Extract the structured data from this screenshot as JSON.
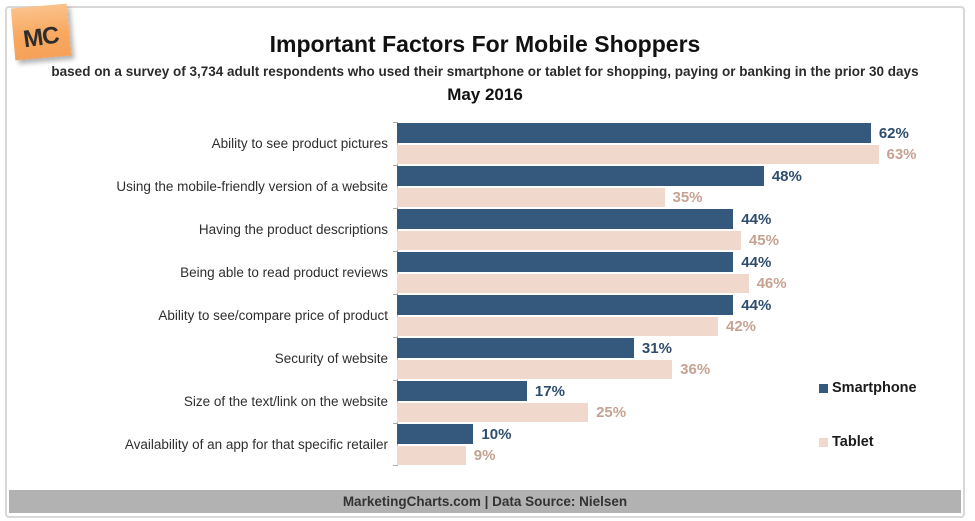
{
  "logo": {
    "text": "MC"
  },
  "header": {
    "title": "Important Factors For Mobile Shoppers",
    "subtitle": "based on a survey of 3,734 adult respondents who used their smartphone or tablet for shopping, paying or banking in the prior 30 days",
    "period": "May 2016"
  },
  "chart_data": {
    "type": "bar",
    "orientation": "horizontal",
    "title": "Important Factors For Mobile Shoppers",
    "subtitle": "May 2016",
    "categories": [
      "Ability to see product pictures",
      "Using the mobile-friendly version of a website",
      "Having the product descriptions",
      "Being able to read product reviews",
      "Ability to see/compare price of product",
      "Security of website",
      "Size of the text/link on the website",
      "Availability of an app for that specific retailer"
    ],
    "series": [
      {
        "name": "Smartphone",
        "color": "#35597d",
        "label_color": "#2e4d6d",
        "values": [
          62,
          48,
          44,
          44,
          44,
          31,
          17,
          10
        ]
      },
      {
        "name": "Tablet",
        "color": "#f0d9cc",
        "label_color": "#c7a292",
        "values": [
          63,
          35,
          45,
          46,
          42,
          36,
          25,
          9
        ]
      }
    ],
    "xlim": [
      0,
      70
    ],
    "value_suffix": "%",
    "grid": false,
    "legend_position": "middle-right"
  },
  "footer": {
    "text": "MarketingCharts.com | Data Source: Nielsen"
  },
  "colors": {
    "smartphone_bar": "#35597d",
    "tablet_bar": "#f0d9cc",
    "footer_bg": "#b2b2b2",
    "frame_border": "#d8d8d8",
    "logo_bg": "#f9a85f"
  }
}
